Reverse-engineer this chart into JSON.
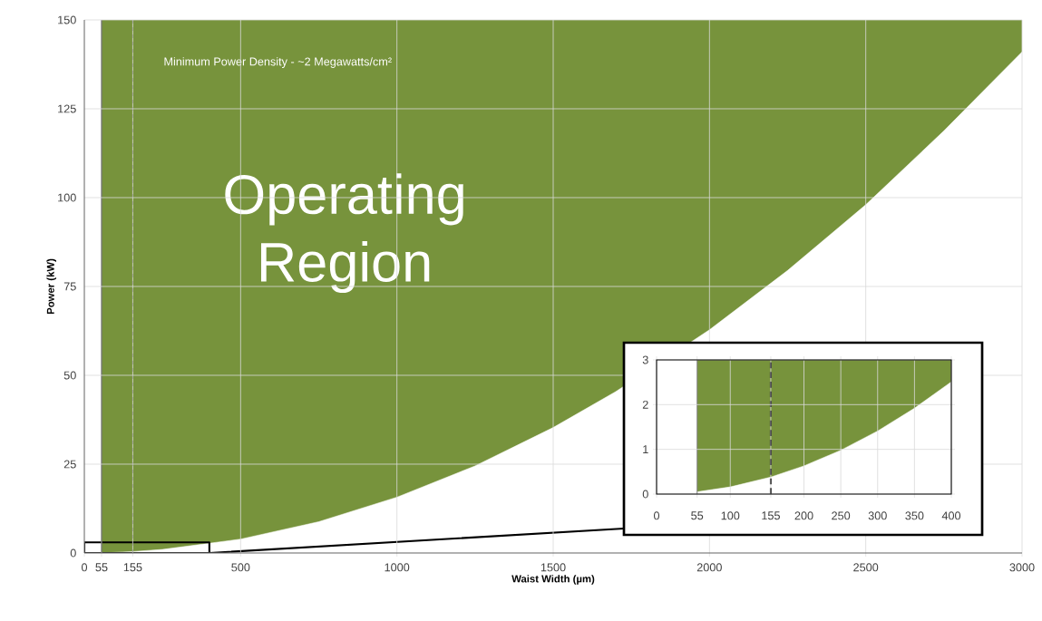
{
  "chart_data": [
    {
      "type": "area",
      "xlabel": "Waist Width (µm)",
      "ylabel": "Power (kW)",
      "annotations": [
        "Minimum Power Density  - ~2 Megawatts/cm²",
        "Operating Region"
      ],
      "x": [
        55,
        155,
        250,
        500,
        750,
        1000,
        1250,
        1500,
        1700,
        2000,
        2250,
        2500,
        2750,
        3000
      ],
      "series": [
        {
          "color": "#ffffff",
          "values": [
            0,
            0.4,
            1.0,
            3.9,
            8.8,
            15.7,
            24.5,
            35.3,
            45.4,
            62.8,
            79.5,
            98,
            118.8,
            141
          ]
        }
      ],
      "xlim": [
        0,
        3000
      ],
      "ylim": [
        0,
        150
      ],
      "xticks": [
        0,
        55,
        155,
        500,
        1000,
        1500,
        2000,
        2500,
        3000
      ],
      "yticks": [
        0,
        25,
        50,
        75,
        100,
        125,
        150
      ],
      "grid": true,
      "bands": [
        {
          "axis": "x",
          "from": 55,
          "to": 3000,
          "color": "#77933c"
        }
      ],
      "ref_lines": [
        {
          "axis": "x",
          "value": 55,
          "color": "#000000",
          "line_style": "solid"
        },
        {
          "axis": "x",
          "value": 155,
          "color": "#000000",
          "line_style": "dashed"
        }
      ]
    },
    {
      "type": "area",
      "x": [
        55,
        100,
        155,
        200,
        250,
        300,
        350,
        400
      ],
      "series": [
        {
          "color": "#ffffff",
          "values": [
            0.05,
            0.16,
            0.38,
            0.63,
            0.98,
            1.41,
            1.92,
            2.51
          ]
        }
      ],
      "xlim": [
        0,
        400
      ],
      "ylim": [
        0,
        3
      ],
      "xticks": [
        0,
        55,
        100,
        155,
        200,
        250,
        300,
        350,
        400
      ],
      "yticks": [
        0,
        1,
        2,
        3
      ],
      "grid": true,
      "bands": [
        {
          "axis": "x",
          "from": 55,
          "to": 400,
          "color": "#77933c"
        }
      ],
      "ref_lines": [
        {
          "axis": "x",
          "value": 55,
          "color": "#000000",
          "line_style": "solid"
        },
        {
          "axis": "x",
          "value": 155,
          "color": "#000000",
          "line_style": "dashed"
        }
      ]
    }
  ]
}
